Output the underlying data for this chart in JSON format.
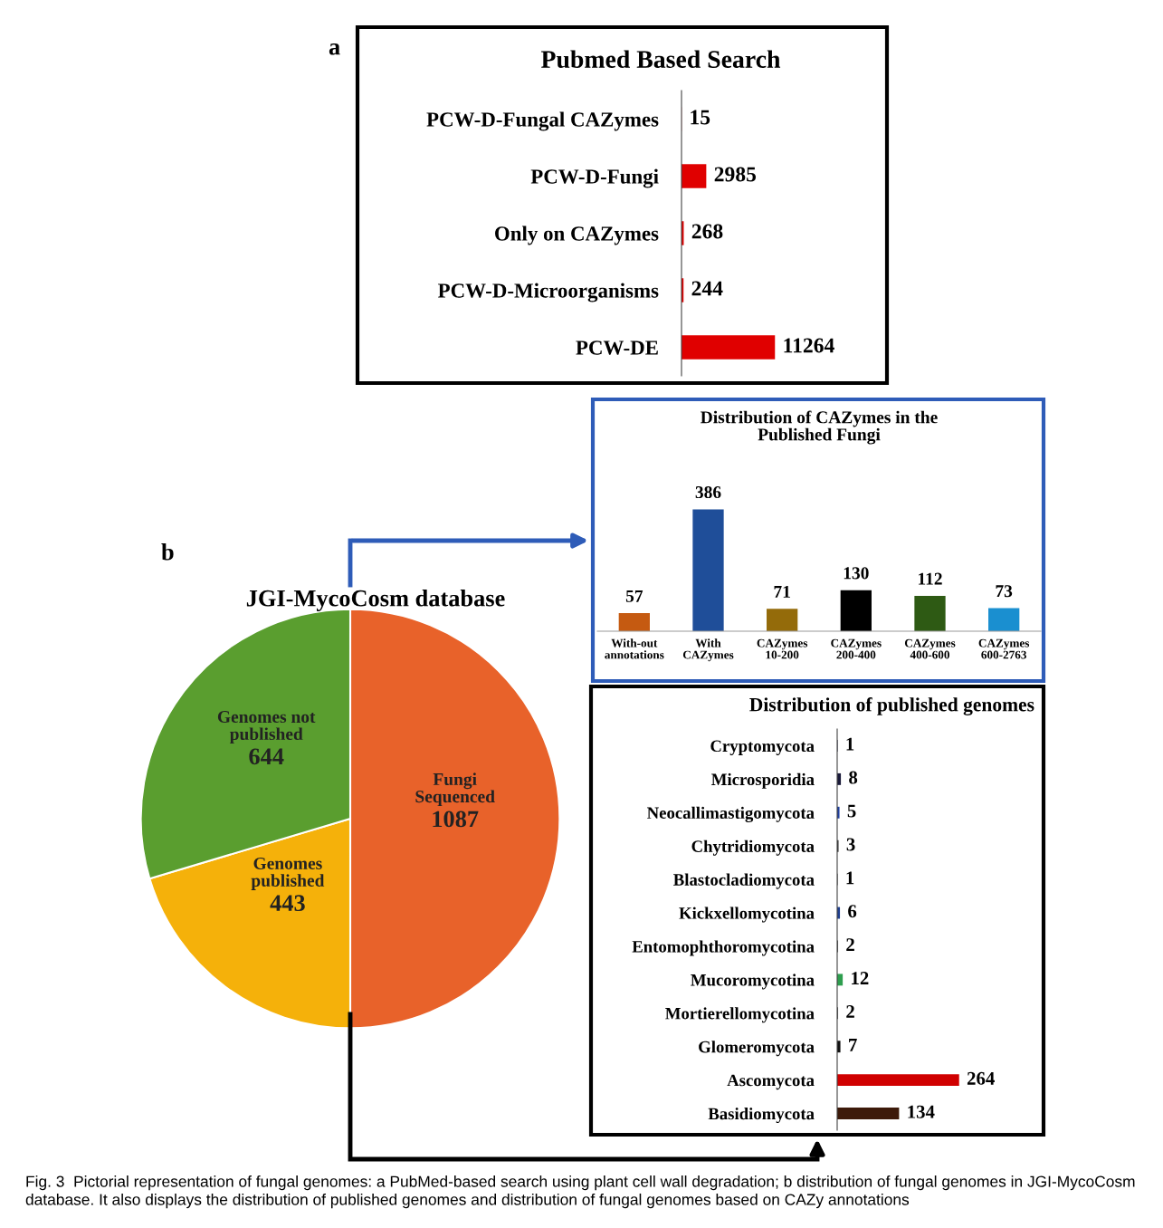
{
  "chart_data": [
    {
      "type": "bar",
      "orientation": "horizontal",
      "title": "Pubmed Based Search",
      "categories": [
        "PCW-D-Fungal CAZymes",
        "PCW-D-Fungi",
        "Only on CAZymes",
        "PCW-D-Microorganisms",
        "PCW-DE"
      ],
      "values": [
        15,
        2985,
        268,
        244,
        11264
      ],
      "colors": [
        "#e00000",
        "#e00000",
        "#e00000",
        "#e00000",
        "#e00000"
      ],
      "data_labels": true,
      "tick_labels": "y",
      "annotations": [
        "a",
        "Fig. 3  Pictorial representation of fungal genomes: a PubMed-based search using plant cell wall degradation; b distribution of fungal genomes in JGI-MycoCosm database. It also displays the distribution of published genomes and distribution of fungal genomes based on CAZy annotations"
      ]
    },
    {
      "type": "bar",
      "title": "Distribution of CAZymes in the\nPublished Fungi",
      "categories": [
        "With-out\nannotations",
        "With\nCAZymes",
        "CAZymes\n10-200",
        "CAZymes\n200-400",
        "CAZymes\n400-600",
        "CAZymes\n600-2763"
      ],
      "values": [
        57,
        386,
        71,
        130,
        112,
        73
      ],
      "colors": [
        "#c55a11",
        "#1f4e99",
        "#946b0a",
        "#000000",
        "#2e5a14",
        "#1a8fd0"
      ],
      "data_labels": true,
      "tick_labels": "x"
    },
    {
      "type": "pie",
      "title": "JGI-MycoCosm database",
      "categories": [
        "Fungi\nSequenced",
        "Genomes\npublished",
        "Genomes not\npublished"
      ],
      "values": [
        1087,
        443,
        644
      ],
      "colors": [
        "#e8622a",
        "#f5b10a",
        "#5a9e2f"
      ],
      "data_labels": true,
      "annotations": [
        "b"
      ]
    },
    {
      "type": "bar",
      "orientation": "horizontal",
      "title": "Distribution of published genomes",
      "categories": [
        "Cryptomycota",
        "Microsporidia",
        "Neocallimastigomycota",
        "Chytridiomycota",
        "Blastocladiomycota",
        "Kickxellomycotina",
        "Entomophthoromycotina",
        "Mucoromycotina",
        "Mortierellomycotina",
        "Glomeromycota",
        "Ascomycota",
        "Basidiomycota"
      ],
      "values": [
        1,
        8,
        5,
        3,
        1,
        6,
        2,
        12,
        2,
        7,
        264,
        134
      ],
      "colors": [
        "#1a1a3a",
        "#1a1a3a",
        "#2040a0",
        "#333333",
        "#333333",
        "#1f3f8f",
        "#555555",
        "#2e9e4e",
        "#555555",
        "#111111",
        "#d00000",
        "#3d1a0a"
      ],
      "data_labels": true,
      "tick_labels": "y"
    }
  ]
}
